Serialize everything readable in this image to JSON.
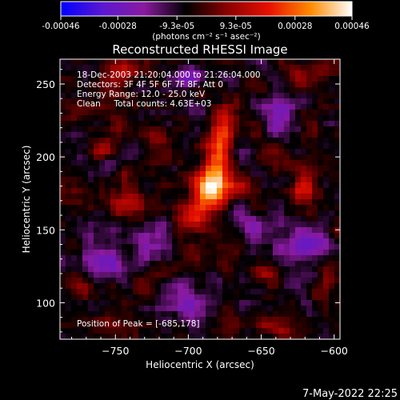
{
  "colorbar": {
    "tick_labels": [
      "-0.00046",
      "-0.00028",
      "-9.3e-05",
      "9.3e-05",
      "0.00028",
      "0.00046"
    ],
    "tick_values": [
      -0.00046,
      -0.00028,
      -9.3e-05,
      9.3e-05,
      0.00028,
      0.00046
    ],
    "range": [
      -0.00046,
      0.00046
    ],
    "unit_label": "(photons cm⁻² s⁻¹ asec⁻²)",
    "stops": [
      "#0000ff",
      "#5a18d0",
      "#8a1aa0",
      "#000000",
      "#8a0000",
      "#e61000",
      "#ff8a00",
      "#ffffff"
    ]
  },
  "chart_data": {
    "type": "heatmap",
    "title": "Reconstructed RHESSI Image",
    "xlabel": "Heliocentric X (arcsec)",
    "ylabel": "Heliocentric Y (arcsec)",
    "xlim": [
      -788,
      -596
    ],
    "ylim": [
      75,
      267
    ],
    "x_ticks": [
      -750,
      -700,
      -650,
      -600
    ],
    "y_ticks": [
      100,
      150,
      200,
      250
    ],
    "x_tick_labels": [
      "−750",
      "−700",
      "−650",
      "−600"
    ],
    "y_tick_labels": [
      "100",
      "150",
      "200",
      "250"
    ],
    "annotations": [
      "18-Dec-2003 21:20:04.000 to 21:26:04.000",
      "Detectors: 3F 4F 5F 6F 7F 8F, Att 0",
      "Energy Range: 12.0 - 25.0 keV",
      "Clean     Total counts: 4.63E+03"
    ],
    "peak_label": "Position of Peak = [-685,178]",
    "peak": [
      -685,
      178
    ],
    "peak_value": 0.00046,
    "sources": [
      {
        "x": -685,
        "y": 178,
        "sx": 7,
        "sy": 9,
        "a": 1.0
      },
      {
        "x": -680,
        "y": 198,
        "sx": 6,
        "sy": 12,
        "a": 0.7
      },
      {
        "x": -676,
        "y": 222,
        "sx": 5,
        "sy": 9,
        "a": 0.55
      },
      {
        "x": -700,
        "y": 160,
        "sx": 7,
        "sy": 8,
        "a": 0.45
      },
      {
        "x": -668,
        "y": 180,
        "sx": 8,
        "sy": 6,
        "a": 0.4
      },
      {
        "x": -745,
        "y": 258,
        "sx": 9,
        "sy": 6,
        "a": 0.4
      },
      {
        "x": -620,
        "y": 178,
        "sx": 6,
        "sy": 8,
        "a": 0.45
      },
      {
        "x": -625,
        "y": 255,
        "sx": 6,
        "sy": 6,
        "a": 0.35
      },
      {
        "x": -740,
        "y": 168,
        "sx": 8,
        "sy": 6,
        "a": 0.35
      },
      {
        "x": -650,
        "y": 120,
        "sx": 7,
        "sy": 5,
        "a": 0.35
      },
      {
        "x": -770,
        "y": 110,
        "sx": 5,
        "sy": 6,
        "a": 0.35
      },
      {
        "x": -605,
        "y": 115,
        "sx": 4,
        "sy": 6,
        "a": 0.3
      },
      {
        "x": -760,
        "y": 205,
        "sx": 6,
        "sy": 5,
        "a": 0.3
      },
      {
        "x": -720,
        "y": 210,
        "sx": 6,
        "sy": 7,
        "a": 0.3
      },
      {
        "x": -640,
        "y": 82,
        "sx": 7,
        "sy": 5,
        "a": 0.3
      },
      {
        "x": -700,
        "y": 255,
        "sx": 10,
        "sy": 6,
        "a": -0.45
      },
      {
        "x": -760,
        "y": 130,
        "sx": 10,
        "sy": 10,
        "a": -0.45
      },
      {
        "x": -620,
        "y": 140,
        "sx": 12,
        "sy": 10,
        "a": -0.5
      },
      {
        "x": -640,
        "y": 230,
        "sx": 9,
        "sy": 9,
        "a": -0.4
      },
      {
        "x": -700,
        "y": 100,
        "sx": 10,
        "sy": 9,
        "a": -0.45
      },
      {
        "x": -725,
        "y": 140,
        "sx": 9,
        "sy": 8,
        "a": -0.4
      },
      {
        "x": -655,
        "y": 150,
        "sx": 8,
        "sy": 8,
        "a": -0.35
      }
    ],
    "noise_amplitude": 0.18,
    "grid": false
  },
  "footer": {
    "timestamp": "7-May-2022 22:25"
  }
}
